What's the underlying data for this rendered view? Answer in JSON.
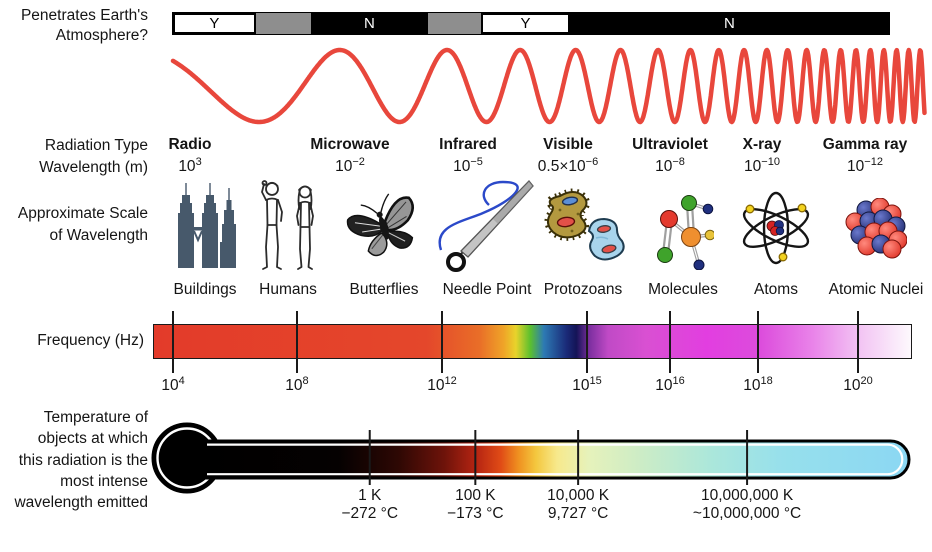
{
  "atmosphere": {
    "label_lines": [
      "Penetrates Earth's",
      "Atmosphere?"
    ],
    "segments": [
      {
        "text": "Y",
        "kind": "yes",
        "width_pct": 11.56
      },
      {
        "text": "",
        "kind": "partial",
        "width_pct": 7.66
      },
      {
        "text": "N",
        "kind": "no",
        "width_pct": 16.43
      },
      {
        "text": "",
        "kind": "partial",
        "width_pct": 7.38
      },
      {
        "text": "Y",
        "kind": "yes",
        "width_pct": 12.4
      },
      {
        "text": "N",
        "kind": "no",
        "width_pct": 44.57
      }
    ]
  },
  "wave": {
    "color": "#e8473c"
  },
  "bands": {
    "row_label_lines": [
      "Radiation Type",
      "Wavelength (m)"
    ],
    "items": [
      {
        "name": "Radio",
        "prefix": "",
        "base": "10",
        "exp": "3"
      },
      {
        "name": "Microwave",
        "prefix": "",
        "base": "10",
        "exp": "−2"
      },
      {
        "name": "Infrared",
        "prefix": "",
        "base": "10",
        "exp": "−5"
      },
      {
        "name": "Visible",
        "prefix": "0.5×",
        "base": "10",
        "exp": "−6"
      },
      {
        "name": "Ultraviolet",
        "prefix": "",
        "base": "10",
        "exp": "−8"
      },
      {
        "name": "X-ray",
        "prefix": "",
        "base": "10",
        "exp": "−10"
      },
      {
        "name": "Gamma ray",
        "prefix": "",
        "base": "10",
        "exp": "−12"
      }
    ]
  },
  "scale": {
    "row_label_lines": [
      "Approximate Scale",
      "of Wavelength"
    ],
    "items": [
      {
        "label": "Buildings",
        "icon": "buildings-icon"
      },
      {
        "label": "Humans",
        "icon": "humans-icon"
      },
      {
        "label": "Butterflies",
        "icon": "butterfly-icon"
      },
      {
        "label": "Needle Point",
        "icon": "needle-icon"
      },
      {
        "label": "Protozoans",
        "icon": "protozoans-icon"
      },
      {
        "label": "Molecules",
        "icon": "molecule-icon"
      },
      {
        "label": "Atoms",
        "icon": "atom-icon"
      },
      {
        "label": "Atomic Nuclei",
        "icon": "atomic-nuclei-icon"
      }
    ]
  },
  "frequency": {
    "row_label": "Frequency (Hz)",
    "ticks": [
      {
        "base": "10",
        "exp": "4",
        "pos_pct": 2.64
      },
      {
        "base": "10",
        "exp": "8",
        "pos_pct": 18.97
      },
      {
        "base": "10",
        "exp": "12",
        "pos_pct": 38.08
      },
      {
        "base": "10",
        "exp": "15",
        "pos_pct": 57.18
      },
      {
        "base": "10",
        "exp": "16",
        "pos_pct": 68.12
      },
      {
        "base": "10",
        "exp": "18",
        "pos_pct": 79.71
      },
      {
        "base": "10",
        "exp": "20",
        "pos_pct": 92.89
      }
    ],
    "gradient": [
      [
        0,
        "#e33b2a"
      ],
      [
        0.36,
        "#e4472b"
      ],
      [
        0.43,
        "#e96e28"
      ],
      [
        0.462,
        "#efa428"
      ],
      [
        0.478,
        "#e8d32b"
      ],
      [
        0.497,
        "#5cc02e"
      ],
      [
        0.515,
        "#2d7ab4"
      ],
      [
        0.545,
        "#1a2a78"
      ],
      [
        0.558,
        "#141457"
      ],
      [
        0.575,
        "#7c2f9f"
      ],
      [
        0.6,
        "#c04ac6"
      ],
      [
        0.65,
        "#d950d2"
      ],
      [
        0.73,
        "#e23ee0"
      ],
      [
        0.8,
        "#dc4cdc"
      ],
      [
        0.87,
        "#e983e9"
      ],
      [
        0.93,
        "#f2c2f3"
      ],
      [
        1,
        "#fdf9fd"
      ]
    ]
  },
  "temperature": {
    "row_label_lines": [
      "Temperature of",
      "objects at which",
      "this radiation is the",
      "most intense",
      "wavelength emitted"
    ],
    "ticks": [
      {
        "kelvin": "1 K",
        "celsius": "−272 °C",
        "pos_pct": 23.4
      },
      {
        "kelvin": "100 K",
        "celsius": "−173 °C",
        "pos_pct": 38.4
      },
      {
        "kelvin": "10,000 K",
        "celsius": "9,727 °C",
        "pos_pct": 53.0
      },
      {
        "kelvin": "10,000,000 K",
        "celsius": "~10,000,000 °C",
        "pos_pct": 77.0
      }
    ],
    "gradient": [
      [
        0,
        "#000000"
      ],
      [
        0.19,
        "#050101"
      ],
      [
        0.275,
        "#2e0804"
      ],
      [
        0.34,
        "#6e130a"
      ],
      [
        0.385,
        "#b52412"
      ],
      [
        0.42,
        "#e04b16"
      ],
      [
        0.445,
        "#ef9020"
      ],
      [
        0.47,
        "#f4c73e"
      ],
      [
        0.5,
        "#f7e98c"
      ],
      [
        0.545,
        "#e6f2bb"
      ],
      [
        0.62,
        "#ccecc6"
      ],
      [
        0.72,
        "#abe7db"
      ],
      [
        0.82,
        "#97e0ec"
      ],
      [
        1,
        "#8bd7f3"
      ]
    ]
  }
}
